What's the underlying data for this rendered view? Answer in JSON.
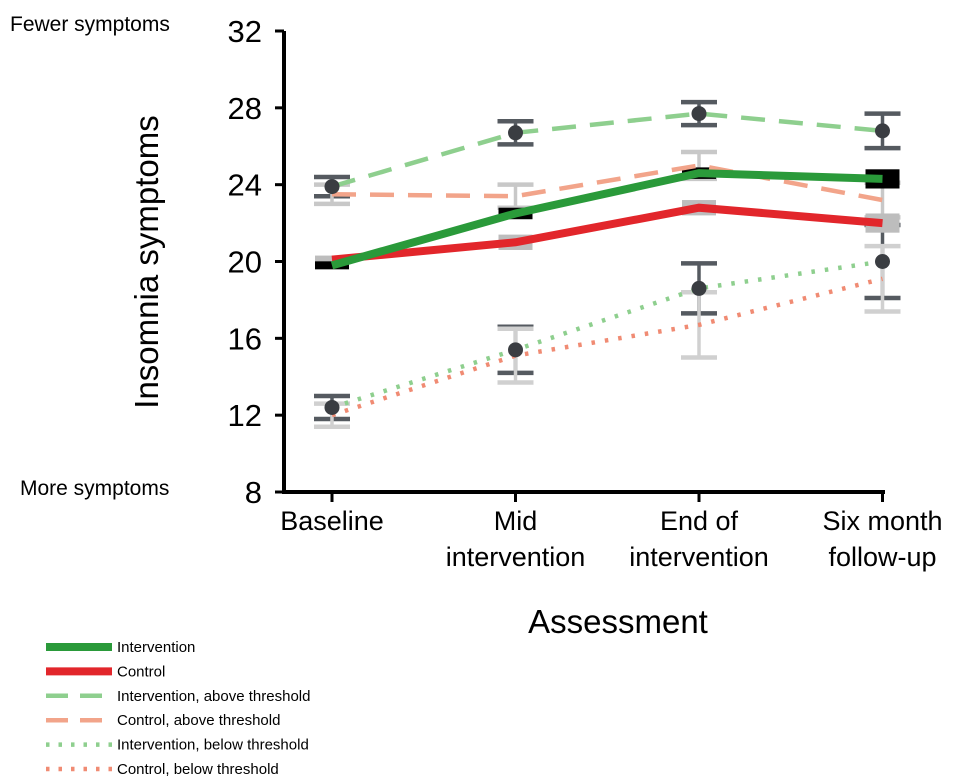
{
  "chart_data": {
    "type": "line",
    "xlabel": "Assessment",
    "ylabel": "Insomnia symptoms",
    "ylim": [
      8,
      32
    ],
    "yticks": [
      "8",
      "12",
      "16",
      "20",
      "24",
      "28",
      "32"
    ],
    "top_annotation": "Fewer symptoms",
    "bottom_annotation": "More symptoms",
    "categories": [
      [
        "Baseline"
      ],
      [
        "Mid",
        "intervention"
      ],
      [
        "End of",
        "intervention"
      ],
      [
        "Six month",
        "follow-up"
      ]
    ],
    "series": [
      {
        "name": "Intervention, above threshold",
        "color": "#8ecf8e",
        "style": "dashed",
        "values": [
          23.9,
          26.7,
          27.7,
          26.8
        ],
        "err": [
          0.5,
          0.6,
          0.6,
          0.9
        ],
        "err_color": "#555a60",
        "marker": true
      },
      {
        "name": "Control, above threshold",
        "color": "#f2a48a",
        "style": "dashed",
        "values": [
          23.5,
          23.4,
          25.0,
          23.2
        ],
        "err": [
          0.5,
          0.6,
          0.7,
          0.9
        ],
        "err_color": "#c8c8c8",
        "marker": false
      },
      {
        "name": "Intervention, below threshold",
        "color": "#8ecf8e",
        "style": "dotted",
        "values": [
          12.4,
          15.4,
          18.6,
          20.0
        ],
        "err": [
          0.6,
          1.2,
          1.3,
          1.9
        ],
        "err_color": "#555a60",
        "marker": true
      },
      {
        "name": "Control, below threshold",
        "color": "#f08b73",
        "style": "dotted",
        "values": [
          12.0,
          15.1,
          16.7,
          19.1
        ],
        "err": [
          0.6,
          1.4,
          1.7,
          1.7
        ],
        "err_color": "#d0d0d0",
        "marker": false
      },
      {
        "name": "Control",
        "color": "#e2262b",
        "style": "solid",
        "values": [
          20.1,
          21.0,
          22.8,
          22.0
        ],
        "err": [
          0.2,
          0.4,
          0.4,
          0.5
        ],
        "err_color": "#bdbdbd",
        "marker": false
      },
      {
        "name": "Intervention",
        "color": "#2a9a3a",
        "style": "solid",
        "values": [
          19.8,
          22.5,
          24.6,
          24.3
        ],
        "err": [
          0.2,
          0.3,
          0.3,
          0.5
        ],
        "err_color": "#000000",
        "marker": false
      }
    ],
    "legend": {
      "placement": "bottom-left",
      "items": [
        {
          "label": "Intervention",
          "color": "#2a9a3a",
          "style": "solid"
        },
        {
          "label": "Control",
          "color": "#e2262b",
          "style": "solid"
        },
        {
          "label": "Intervention, above threshold",
          "color": "#8ecf8e",
          "style": "dashed"
        },
        {
          "label": "Control, above threshold",
          "color": "#f2a48a",
          "style": "dashed"
        },
        {
          "label": "Intervention, below threshold",
          "color": "#8ecf8e",
          "style": "dotted"
        },
        {
          "label": "Control, below threshold",
          "color": "#f08b73",
          "style": "dotted"
        }
      ]
    },
    "grid": false
  }
}
